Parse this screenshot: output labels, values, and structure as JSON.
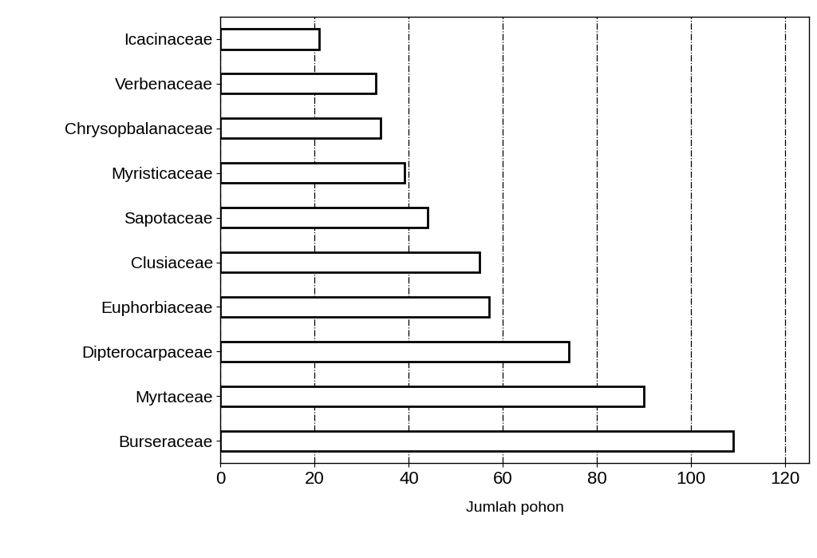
{
  "chart_data": {
    "type": "bar",
    "orientation": "horizontal",
    "categories": [
      "Icacinaceae",
      "Verbenaceae",
      "Chrysopbalanaceae",
      "Myristicaceae",
      "Sapotaceae",
      "Clusiaceae",
      "Euphorbiaceae",
      "Dipterocarpaceae",
      "Myrtaceae",
      "Burseraceae"
    ],
    "values": [
      21,
      33,
      34,
      39,
      44,
      55,
      57,
      74,
      90,
      109
    ],
    "color": "#ffffff",
    "x_label": "Jumlah pohon",
    "xlim": [
      0,
      125
    ],
    "xticks": [
      0,
      20,
      40,
      60,
      80,
      100,
      120
    ],
    "grid": true
  }
}
